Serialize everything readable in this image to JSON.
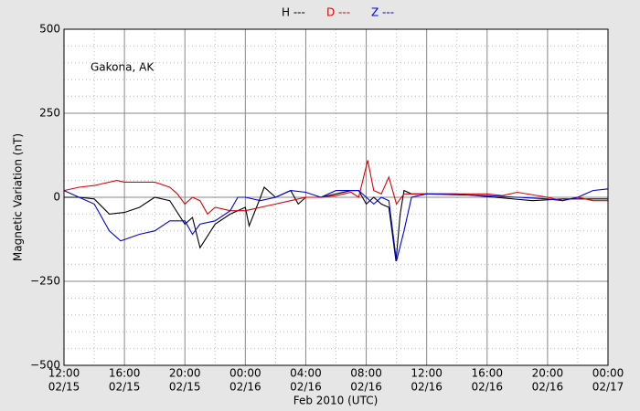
{
  "chart_data": {
    "type": "line",
    "annotation": "Gakona, AK",
    "xlabel": "Feb 2010 (UTC)",
    "ylabel": "Magnetic Variation (nT)",
    "xlim": [
      "02/15 12:00",
      "02/17 00:00"
    ],
    "xticks": [
      {
        "value": "02/15 12:00",
        "label": [
          "12:00",
          "02/15"
        ]
      },
      {
        "value": "02/15 16:00",
        "label": [
          "16:00",
          "02/15"
        ]
      },
      {
        "value": "02/15 20:00",
        "label": [
          "20:00",
          "02/15"
        ]
      },
      {
        "value": "02/16 00:00",
        "label": [
          "00:00",
          "02/16"
        ]
      },
      {
        "value": "02/16 04:00",
        "label": [
          "04:00",
          "02/16"
        ]
      },
      {
        "value": "02/16 08:00",
        "label": [
          "08:00",
          "02/16"
        ]
      },
      {
        "value": "02/16 12:00",
        "label": [
          "12:00",
          "02/16"
        ]
      },
      {
        "value": "02/16 16:00",
        "label": [
          "16:00",
          "02/16"
        ]
      },
      {
        "value": "02/16 20:00",
        "label": [
          "20:00",
          "02/16"
        ]
      },
      {
        "value": "02/17 00:00",
        "label": [
          "00:00",
          "02/17"
        ]
      }
    ],
    "minor_xticks": [
      "02/15 14:00",
      "02/15 18:00",
      "02/15 22:00",
      "02/16 02:00",
      "02/16 06:00",
      "02/16 10:00",
      "02/16 14:00",
      "02/16 18:00",
      "02/16 22:00"
    ],
    "ylim": [
      -500,
      500
    ],
    "yticks": [
      {
        "value": -500,
        "label": "−500"
      },
      {
        "value": -250,
        "label": "−250"
      },
      0,
      250,
      500
    ],
    "minor_yticks": [
      -450,
      -400,
      -350,
      -300,
      -200,
      -150,
      -100,
      -50,
      50,
      100,
      150,
      200,
      300,
      350,
      400,
      450
    ],
    "grid": true,
    "series": [
      {
        "name": "H ---",
        "color": "#000000",
        "x": [
          "02/15 12:00",
          "02/15 13:00",
          "02/15 14:00",
          "02/15 15:00",
          "02/15 16:00",
          "02/15 17:00",
          "02/15 18:00",
          "02/15 19:00",
          "02/15 20:00",
          "02/15 20:30",
          "02/15 21:00",
          "02/15 22:00",
          "02/15 23:00",
          "02/16 00:00",
          "02/16 00:15",
          "02/16 01:00",
          "02/16 01:15",
          "02/16 02:00",
          "02/16 03:00",
          "02/16 03:30",
          "02/16 04:00",
          "02/16 05:00",
          "02/16 06:00",
          "02/16 07:00",
          "02/16 07:30",
          "02/16 08:00",
          "02/16 08:30",
          "02/16 09:00",
          "02/16 09:30",
          "02/16 09:58",
          "02/16 10:15",
          "02/16 10:30",
          "02/16 11:00",
          "02/16 12:00",
          "02/16 14:00",
          "02/16 16:30",
          "02/16 19:00",
          "02/16 21:00",
          "02/16 23:00",
          "02/17 00:00"
        ],
        "values": [
          0,
          0,
          -5,
          -50,
          -45,
          -30,
          0,
          -10,
          -80,
          -60,
          -150,
          -80,
          -50,
          -30,
          -85,
          0,
          30,
          0,
          20,
          -20,
          0,
          0,
          10,
          20,
          20,
          -20,
          0,
          -20,
          -30,
          -190,
          -50,
          20,
          10,
          10,
          10,
          0,
          -10,
          -5,
          -5,
          -5
        ]
      },
      {
        "name": "D ---",
        "color": "#e00000",
        "x": [
          "02/15 12:00",
          "02/15 13:00",
          "02/15 14:00",
          "02/15 15:30",
          "02/15 16:00",
          "02/15 17:00",
          "02/15 18:00",
          "02/15 19:00",
          "02/15 19:30",
          "02/15 20:00",
          "02/15 20:30",
          "02/15 21:00",
          "02/15 21:30",
          "02/15 22:00",
          "02/15 23:00",
          "02/16 00:00",
          "02/16 00:30",
          "02/16 01:00",
          "02/16 02:00",
          "02/16 03:00",
          "02/16 04:00",
          "02/16 05:00",
          "02/16 06:00",
          "02/16 07:00",
          "02/16 07:30",
          "02/16 08:06",
          "02/16 08:30",
          "02/16 09:00",
          "02/16 09:30",
          "02/16 10:00",
          "02/16 10:30",
          "02/16 11:00",
          "02/16 16:00",
          "02/16 17:00",
          "02/16 18:00",
          "02/16 20:00",
          "02/16 21:00",
          "02/16 22:00",
          "02/16 23:00",
          "02/17 00:00"
        ],
        "values": [
          20,
          30,
          35,
          50,
          45,
          45,
          45,
          30,
          10,
          -20,
          0,
          -10,
          -50,
          -30,
          -40,
          -40,
          -35,
          -30,
          -20,
          -10,
          0,
          0,
          5,
          15,
          0,
          110,
          20,
          10,
          60,
          -20,
          10,
          10,
          10,
          5,
          15,
          0,
          -10,
          0,
          -10,
          -10
        ]
      },
      {
        "name": "Z ---",
        "color": "#0000e0",
        "x": [
          "02/15 12:00",
          "02/15 13:00",
          "02/15 14:00",
          "02/15 15:00",
          "02/15 15:45",
          "02/15 17:00",
          "02/15 18:00",
          "02/15 19:00",
          "02/15 20:00",
          "02/15 20:30",
          "02/15 21:00",
          "02/15 22:00",
          "02/15 23:00",
          "02/15 23:30",
          "02/16 00:00",
          "02/16 01:00",
          "02/16 02:00",
          "02/16 03:00",
          "02/16 04:00",
          "02/16 05:00",
          "02/16 06:00",
          "02/16 07:00",
          "02/16 07:30",
          "02/16 08:00",
          "02/16 08:30",
          "02/16 09:00",
          "02/16 09:30",
          "02/16 10:00",
          "02/16 10:30",
          "02/16 11:00",
          "02/16 12:00",
          "02/16 16:00",
          "02/16 18:00",
          "02/16 20:00",
          "02/16 21:00",
          "02/16 22:00",
          "02/16 23:00",
          "02/17 00:00"
        ],
        "values": [
          20,
          0,
          -20,
          -100,
          -130,
          -110,
          -100,
          -70,
          -70,
          -110,
          -80,
          -70,
          -40,
          0,
          0,
          -10,
          0,
          20,
          15,
          0,
          20,
          20,
          20,
          0,
          -20,
          0,
          -10,
          -190,
          -100,
          0,
          10,
          5,
          0,
          -5,
          -10,
          0,
          20,
          25
        ]
      }
    ]
  }
}
